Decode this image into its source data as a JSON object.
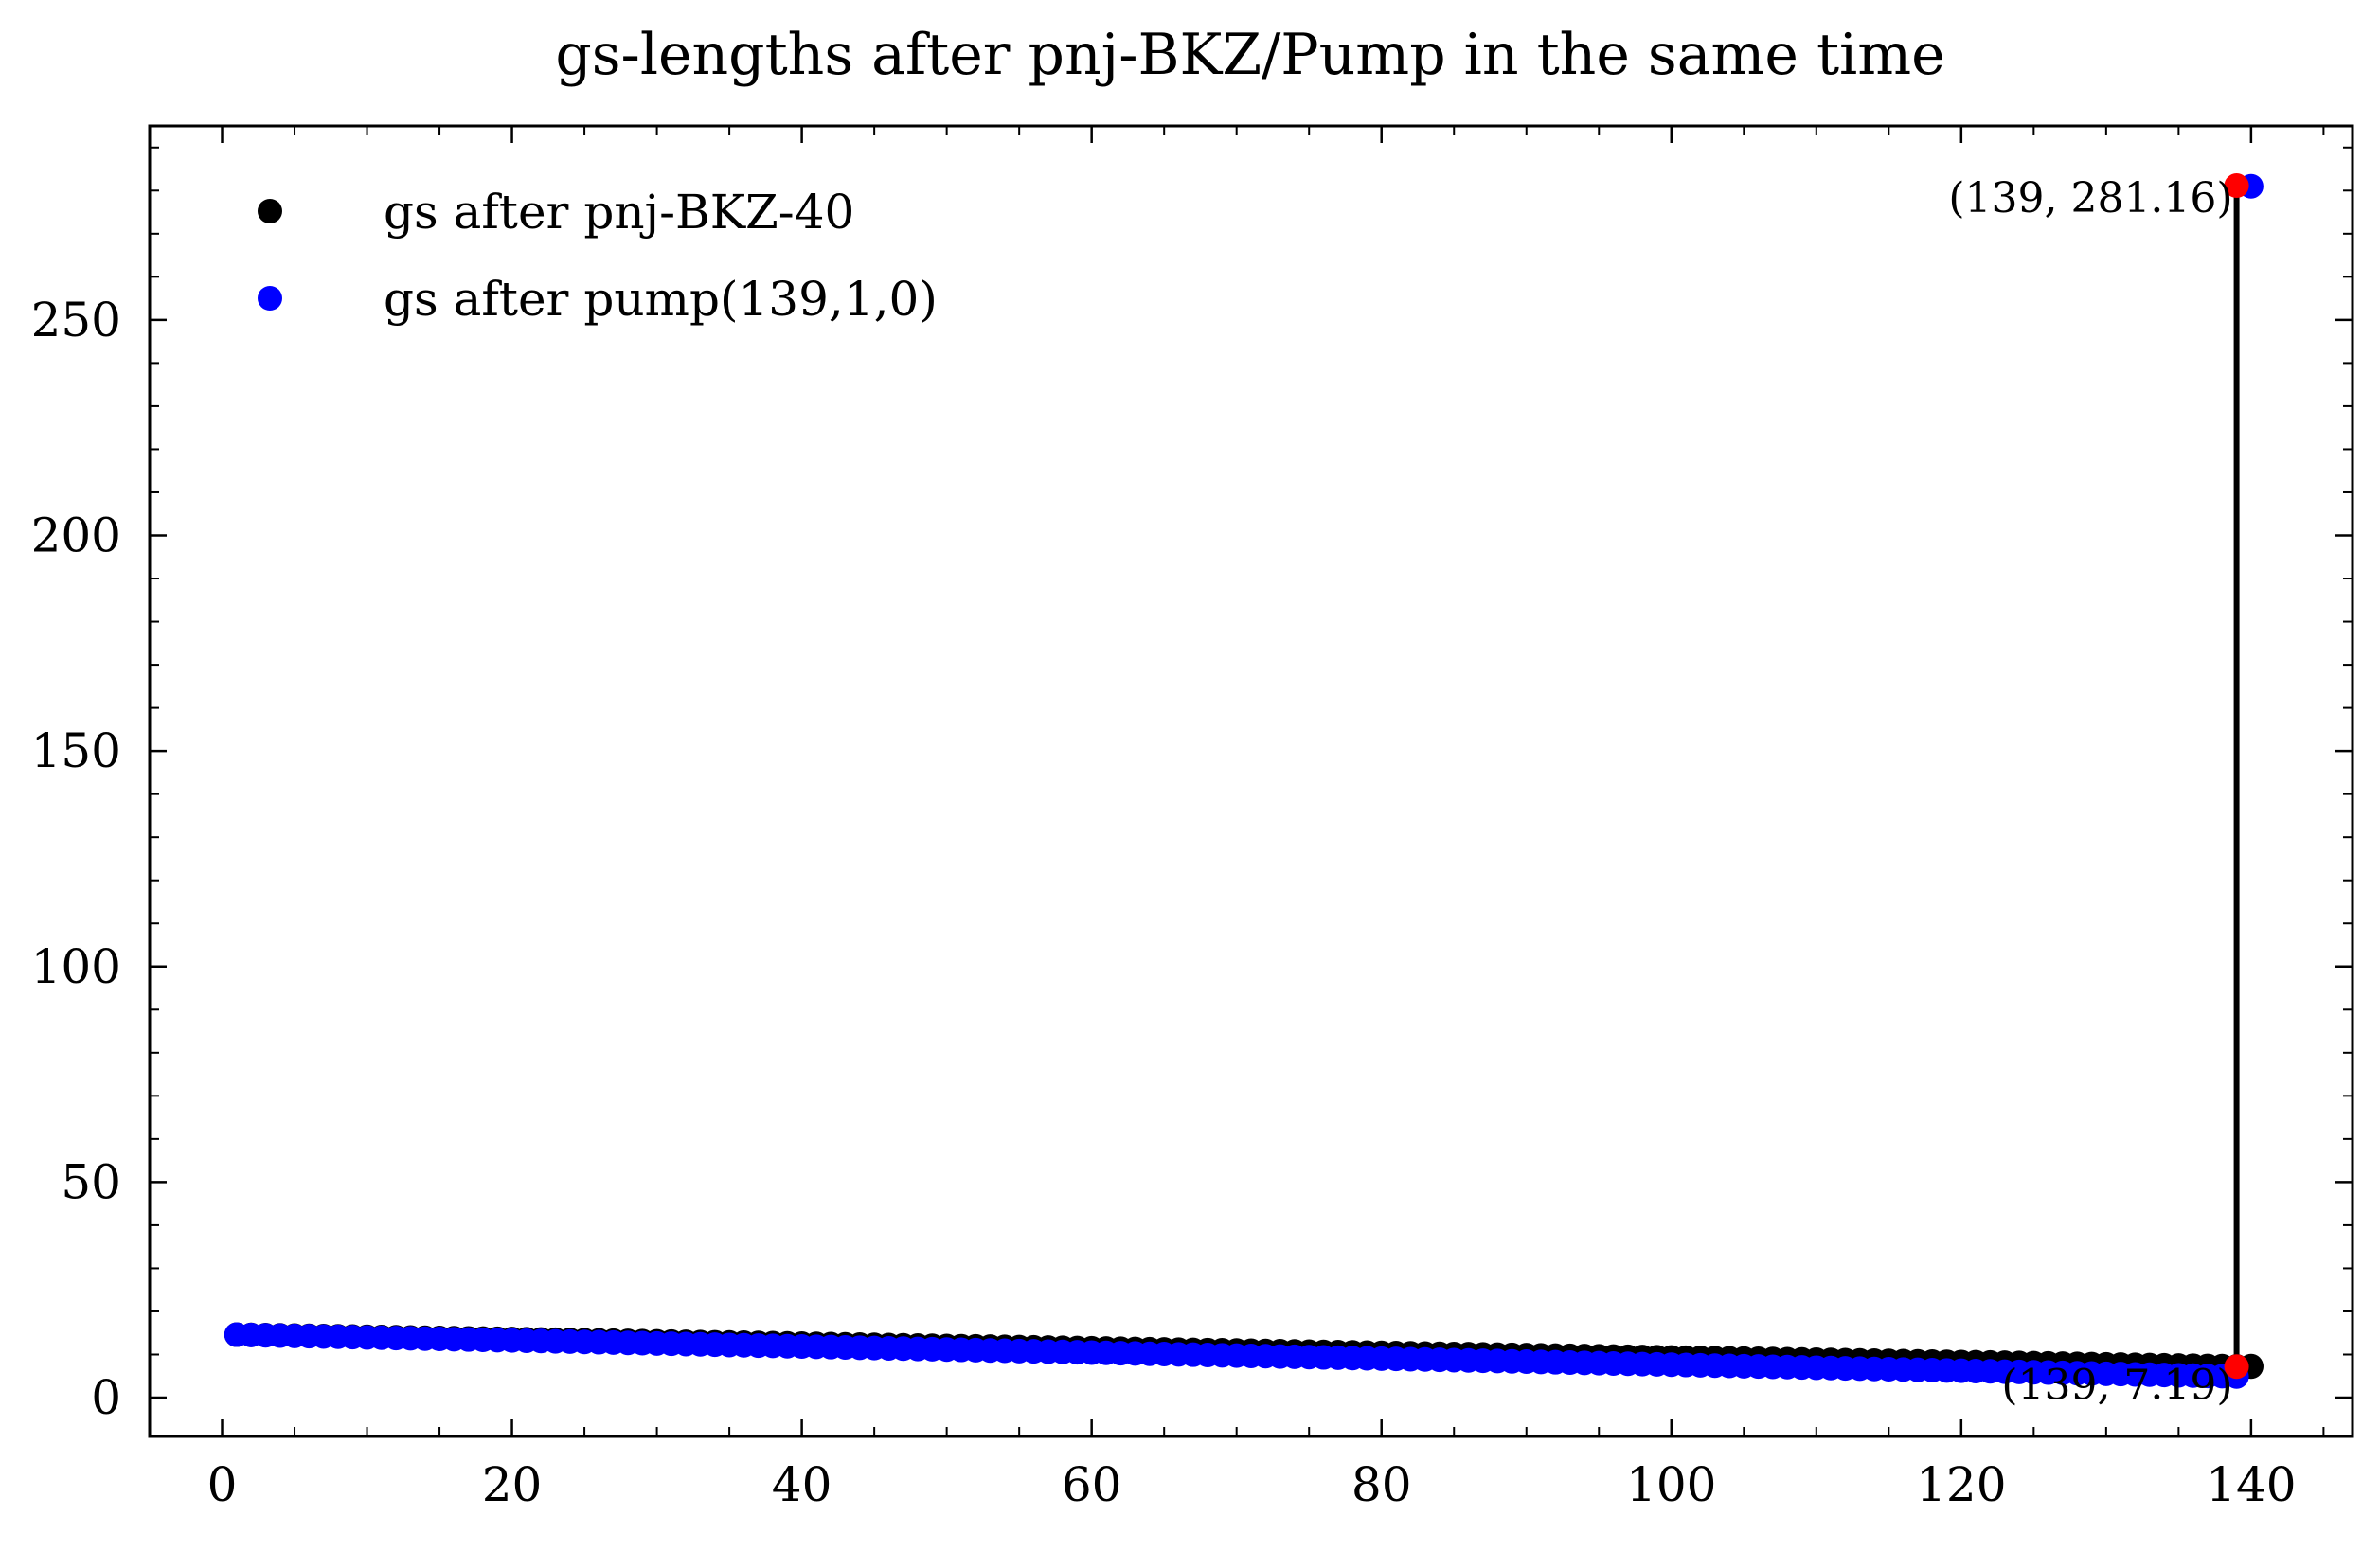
{
  "chart_data": {
    "type": "scatter",
    "title": "gs-lengths after pnj-BKZ/Pump in the same time",
    "xlabel": "",
    "ylabel": "",
    "xlim": [
      -5,
      147
    ],
    "ylim": [
      -9,
      295
    ],
    "x_ticks": [
      0,
      20,
      40,
      60,
      80,
      100,
      120,
      140
    ],
    "y_ticks": [
      0,
      50,
      100,
      150,
      200,
      250
    ],
    "grid": false,
    "legend_position": "top-left",
    "series": [
      {
        "name": "gs after pnj-BKZ-40",
        "color": "#000000",
        "x_range": [
          1,
          140
        ],
        "y_start": 14.6,
        "y_end": 7.19,
        "extra_points": [
          [
            140,
            7.3
          ]
        ]
      },
      {
        "name": "gs after pump(139,1,0)",
        "color": "#0000ff",
        "x_range": [
          1,
          139
        ],
        "y_start": 14.6,
        "y_end": 4.9,
        "extra_points": [
          [
            140,
            281.0
          ]
        ]
      }
    ],
    "highlight_points": [
      {
        "x": 139,
        "y": 281.16,
        "color": "#ff0000",
        "label": "(139, 281.16)"
      },
      {
        "x": 139,
        "y": 7.19,
        "color": "#ff0000",
        "label": "(139, 7.19)"
      }
    ],
    "vline": {
      "x": 139,
      "y_from": 7.19,
      "y_to": 281.16,
      "color": "#000000"
    }
  }
}
